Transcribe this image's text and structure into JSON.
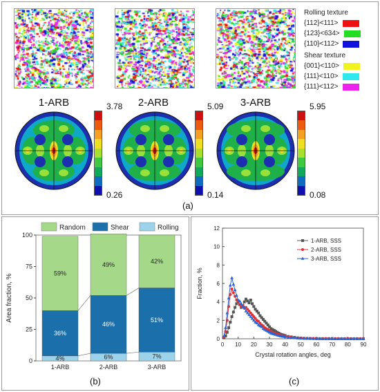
{
  "panel_a": {
    "label": "(a)",
    "legend": {
      "rolling_title": "Rolling texture",
      "shear_title": "Shear texture",
      "rolling": [
        {
          "label": "{112}<111>",
          "color": "#ee1111"
        },
        {
          "label": "{123}<634>",
          "color": "#22dd22"
        },
        {
          "label": "{110}<112>",
          "color": "#1111dd"
        }
      ],
      "shear": [
        {
          "label": "{001}<110>",
          "color": "#f2f21e"
        },
        {
          "label": "{111}<110>",
          "color": "#2ee8ee"
        },
        {
          "label": "{111}<112>",
          "color": "#ee22ee"
        }
      ]
    },
    "samples": [
      {
        "name": "1-ARB",
        "max": "3.78",
        "min": "0.26"
      },
      {
        "name": "2-ARB",
        "max": "5.09",
        "min": "0.14"
      },
      {
        "name": "3-ARB",
        "max": "5.95",
        "min": "0.08"
      }
    ],
    "colorbar_colors": [
      "#d01010",
      "#f05a10",
      "#f5a020",
      "#eee020",
      "#a8e030",
      "#40c840",
      "#10a85a",
      "#0d6cc0",
      "#1010b0"
    ]
  },
  "panel_b": {
    "label": "(b)",
    "chart_data": {
      "type": "bar",
      "stacked": true,
      "categories": [
        "1-ARB",
        "2-ARB",
        "3-ARB"
      ],
      "series": [
        {
          "name": "Rolling",
          "values": [
            4,
            6,
            7
          ],
          "labels": [
            "4%",
            "6%",
            "7%"
          ],
          "color": "#9cd3ea"
        },
        {
          "name": "Shear",
          "values": [
            36,
            46,
            51
          ],
          "labels": [
            "36%",
            "46%",
            "51%"
          ],
          "color": "#1b6faa"
        },
        {
          "name": "Random",
          "values": [
            59,
            49,
            42
          ],
          "labels": [
            "59%",
            "49%",
            "42%"
          ],
          "color": "#a6d88a"
        }
      ],
      "ylabel": "Area fraction, %",
      "ylim": [
        0,
        100
      ],
      "yticks": [
        "0",
        "25",
        "50",
        "75",
        "100"
      ],
      "legend": [
        "Random",
        "Shear",
        "Rolling"
      ]
    }
  },
  "panel_c": {
    "label": "(c)",
    "chart_data": {
      "type": "line",
      "xlabel": "Crystal rotation angles, deg",
      "ylabel": "Fraction, %",
      "xlim": [
        0,
        90
      ],
      "ylim": [
        0,
        12
      ],
      "xticks": [
        "0",
        "10",
        "20",
        "30",
        "40",
        "50",
        "60",
        "70",
        "80",
        "90"
      ],
      "yticks": [
        "0",
        "2",
        "4",
        "6",
        "8",
        "10",
        "12"
      ],
      "x": [
        1,
        2,
        3,
        4,
        5,
        6,
        7,
        8,
        9,
        10,
        11,
        12,
        13,
        14,
        15,
        16,
        17,
        18,
        19,
        20,
        21,
        22,
        23,
        24,
        25,
        26,
        27,
        28,
        29,
        30,
        31,
        32,
        33,
        34,
        35,
        36,
        37,
        38,
        39,
        40,
        42,
        44,
        46,
        48,
        50,
        52,
        54,
        56,
        58,
        60,
        62,
        64,
        66,
        68,
        70,
        72,
        74,
        76,
        78,
        80,
        82,
        84,
        86,
        88,
        90
      ],
      "series": [
        {
          "name": "1-ARB, SSS",
          "color": "#555555",
          "marker": "square",
          "values": [
            0.1,
            0.3,
            0.7,
            1.2,
            1.8,
            2.4,
            2.9,
            3.4,
            3.8,
            4.0,
            3.7,
            3.4,
            3.6,
            4.0,
            4.3,
            4.1,
            3.9,
            4.2,
            3.8,
            3.5,
            3.2,
            3.0,
            2.8,
            2.5,
            2.3,
            2.1,
            1.9,
            1.7,
            1.5,
            1.3,
            1.1,
            1.0,
            0.9,
            0.8,
            0.7,
            0.6,
            0.5,
            0.45,
            0.4,
            0.35,
            0.25,
            0.2,
            0.15,
            0.1,
            0.08,
            0.05,
            0.04,
            0.03,
            0.02,
            0.02,
            0.01,
            0.01,
            0.01,
            0.01,
            0,
            0,
            0,
            0,
            0,
            0,
            0,
            0,
            0,
            0,
            0
          ]
        },
        {
          "name": "2-ARB, SSS",
          "color": "#e03030",
          "marker": "circle",
          "values": [
            0.2,
            0.8,
            2.0,
            3.5,
            4.8,
            5.4,
            5.0,
            4.6,
            4.2,
            4.0,
            3.7,
            3.5,
            3.6,
            3.3,
            3.4,
            3.2,
            3.0,
            2.8,
            2.6,
            2.4,
            2.2,
            2.0,
            1.9,
            1.7,
            1.5,
            1.4,
            1.2,
            1.1,
            1.0,
            0.9,
            0.8,
            0.7,
            0.6,
            0.55,
            0.5,
            0.45,
            0.4,
            0.35,
            0.3,
            0.28,
            0.22,
            0.17,
            0.12,
            0.08,
            0.06,
            0.04,
            0.03,
            0.02,
            0.02,
            0.01,
            0.01,
            0.01,
            0,
            0,
            0,
            0,
            0,
            0,
            0,
            0,
            0,
            0,
            0,
            0,
            0
          ]
        },
        {
          "name": "3-ARB, SSS",
          "color": "#2a63d4",
          "marker": "triangle",
          "values": [
            0.3,
            1.2,
            2.8,
            4.4,
            5.8,
            6.6,
            5.9,
            5.3,
            4.7,
            4.2,
            4.1,
            3.8,
            3.5,
            3.4,
            3.0,
            2.8,
            2.6,
            2.4,
            2.2,
            2.0,
            1.8,
            1.7,
            1.5,
            1.4,
            1.3,
            1.1,
            1.0,
            0.9,
            0.8,
            0.7,
            0.6,
            0.55,
            0.5,
            0.45,
            0.4,
            0.35,
            0.3,
            0.27,
            0.25,
            0.22,
            0.17,
            0.13,
            0.1,
            0.07,
            0.05,
            0.04,
            0.03,
            0.02,
            0.02,
            0.01,
            0.01,
            0,
            0,
            0,
            0,
            0,
            0,
            0,
            0,
            0,
            0,
            0,
            0,
            0,
            0
          ]
        }
      ]
    }
  }
}
